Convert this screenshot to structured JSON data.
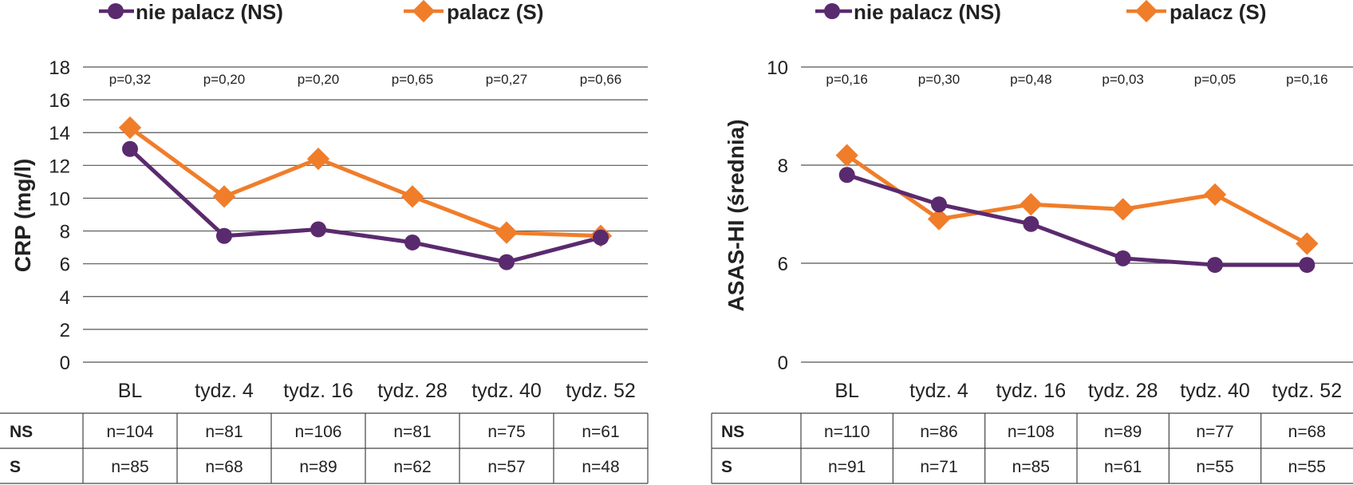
{
  "legend": {
    "ns_label": "nie palacz (NS)",
    "s_label": "palacz (S)"
  },
  "colors": {
    "ns": "#5a2a6e",
    "s": "#f07d2a"
  },
  "chart_data": [
    {
      "type": "line",
      "title": "",
      "xlabel": "",
      "ylabel": "CRP (mg/l)",
      "ylim": [
        0,
        18
      ],
      "yticks": [
        0,
        2,
        4,
        6,
        8,
        10,
        12,
        14,
        16,
        18
      ],
      "categories": [
        "BL",
        "tydz. 4",
        "tydz. 16",
        "tydz. 28",
        "tydz. 40",
        "tydz. 52"
      ],
      "series": [
        {
          "name": "nie palacz (NS)",
          "values": [
            13.0,
            7.7,
            8.1,
            7.3,
            6.1,
            7.6
          ]
        },
        {
          "name": "palacz (S)",
          "values": [
            14.3,
            10.1,
            12.4,
            10.1,
            7.9,
            7.7
          ]
        }
      ],
      "p_values": [
        "p=0,32",
        "p=0,20",
        "p=0,20",
        "p=0,65",
        "p=0,27",
        "p=0,66"
      ],
      "table": {
        "ns_header": "NS",
        "s_header": "S",
        "ns": [
          "n=104",
          "n=81",
          "n=106",
          "n=81",
          "n=75",
          "n=61"
        ],
        "s": [
          "n=85",
          "n=68",
          "n=89",
          "n=62",
          "n=57",
          "n=48"
        ]
      }
    },
    {
      "type": "line",
      "title": "",
      "xlabel": "",
      "ylabel": "ASAS-HI (średnia)",
      "ylim": [
        0,
        10
      ],
      "yticks": [
        0,
        6,
        8,
        10
      ],
      "y_axis_broken": true,
      "categories": [
        "BL",
        "tydz. 4",
        "tydz. 16",
        "tydz. 28",
        "tydz. 40",
        "tydz. 52"
      ],
      "series": [
        {
          "name": "nie palacz (NS)",
          "values": [
            7.8,
            7.2,
            6.8,
            6.1,
            5.9,
            5.9
          ]
        },
        {
          "name": "palacz (S)",
          "values": [
            8.2,
            6.9,
            7.2,
            7.1,
            7.4,
            6.4
          ]
        }
      ],
      "p_values": [
        "p=0,16",
        "p=0,30",
        "p=0,48",
        "p=0,03",
        "p=0,05",
        "p=0,16"
      ],
      "table": {
        "ns_header": "NS",
        "s_header": "S",
        "ns": [
          "n=110",
          "n=86",
          "n=108",
          "n=89",
          "n=77",
          "n=68"
        ],
        "s": [
          "n=91",
          "n=71",
          "n=85",
          "n=61",
          "n=55",
          "n=55"
        ]
      }
    }
  ]
}
